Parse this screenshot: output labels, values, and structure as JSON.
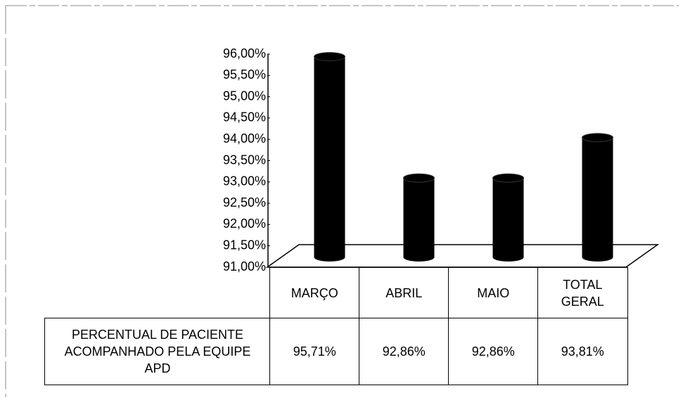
{
  "chart_data": {
    "type": "bar",
    "categories": [
      "MARÇO",
      "ABRIL",
      "MAIO",
      "TOTAL GERAL"
    ],
    "series": [
      {
        "name": "PERCENTUAL DE PACIENTE ACOMPANHADO PELA EQUIPE APD",
        "color": "#000000",
        "values": [
          95.71,
          92.86,
          92.86,
          93.81
        ],
        "value_labels": [
          "95,71%",
          "92,86%",
          "92,86%",
          "93,81%"
        ]
      }
    ],
    "ylim": [
      91,
      96
    ],
    "yticks": [
      {
        "value": 91,
        "label": "91,00%"
      },
      {
        "value": 91.5,
        "label": "91,50%"
      },
      {
        "value": 92,
        "label": "92,00%"
      },
      {
        "value": 92.5,
        "label": "92,50%"
      },
      {
        "value": 93,
        "label": "93,00%"
      },
      {
        "value": 93.5,
        "label": "93,50%"
      },
      {
        "value": 94,
        "label": "94,00%"
      },
      {
        "value": 94.5,
        "label": "94,50%"
      },
      {
        "value": 95,
        "label": "95,00%"
      },
      {
        "value": 95.5,
        "label": "95,50%"
      },
      {
        "value": 96,
        "label": "96,00%"
      }
    ]
  }
}
